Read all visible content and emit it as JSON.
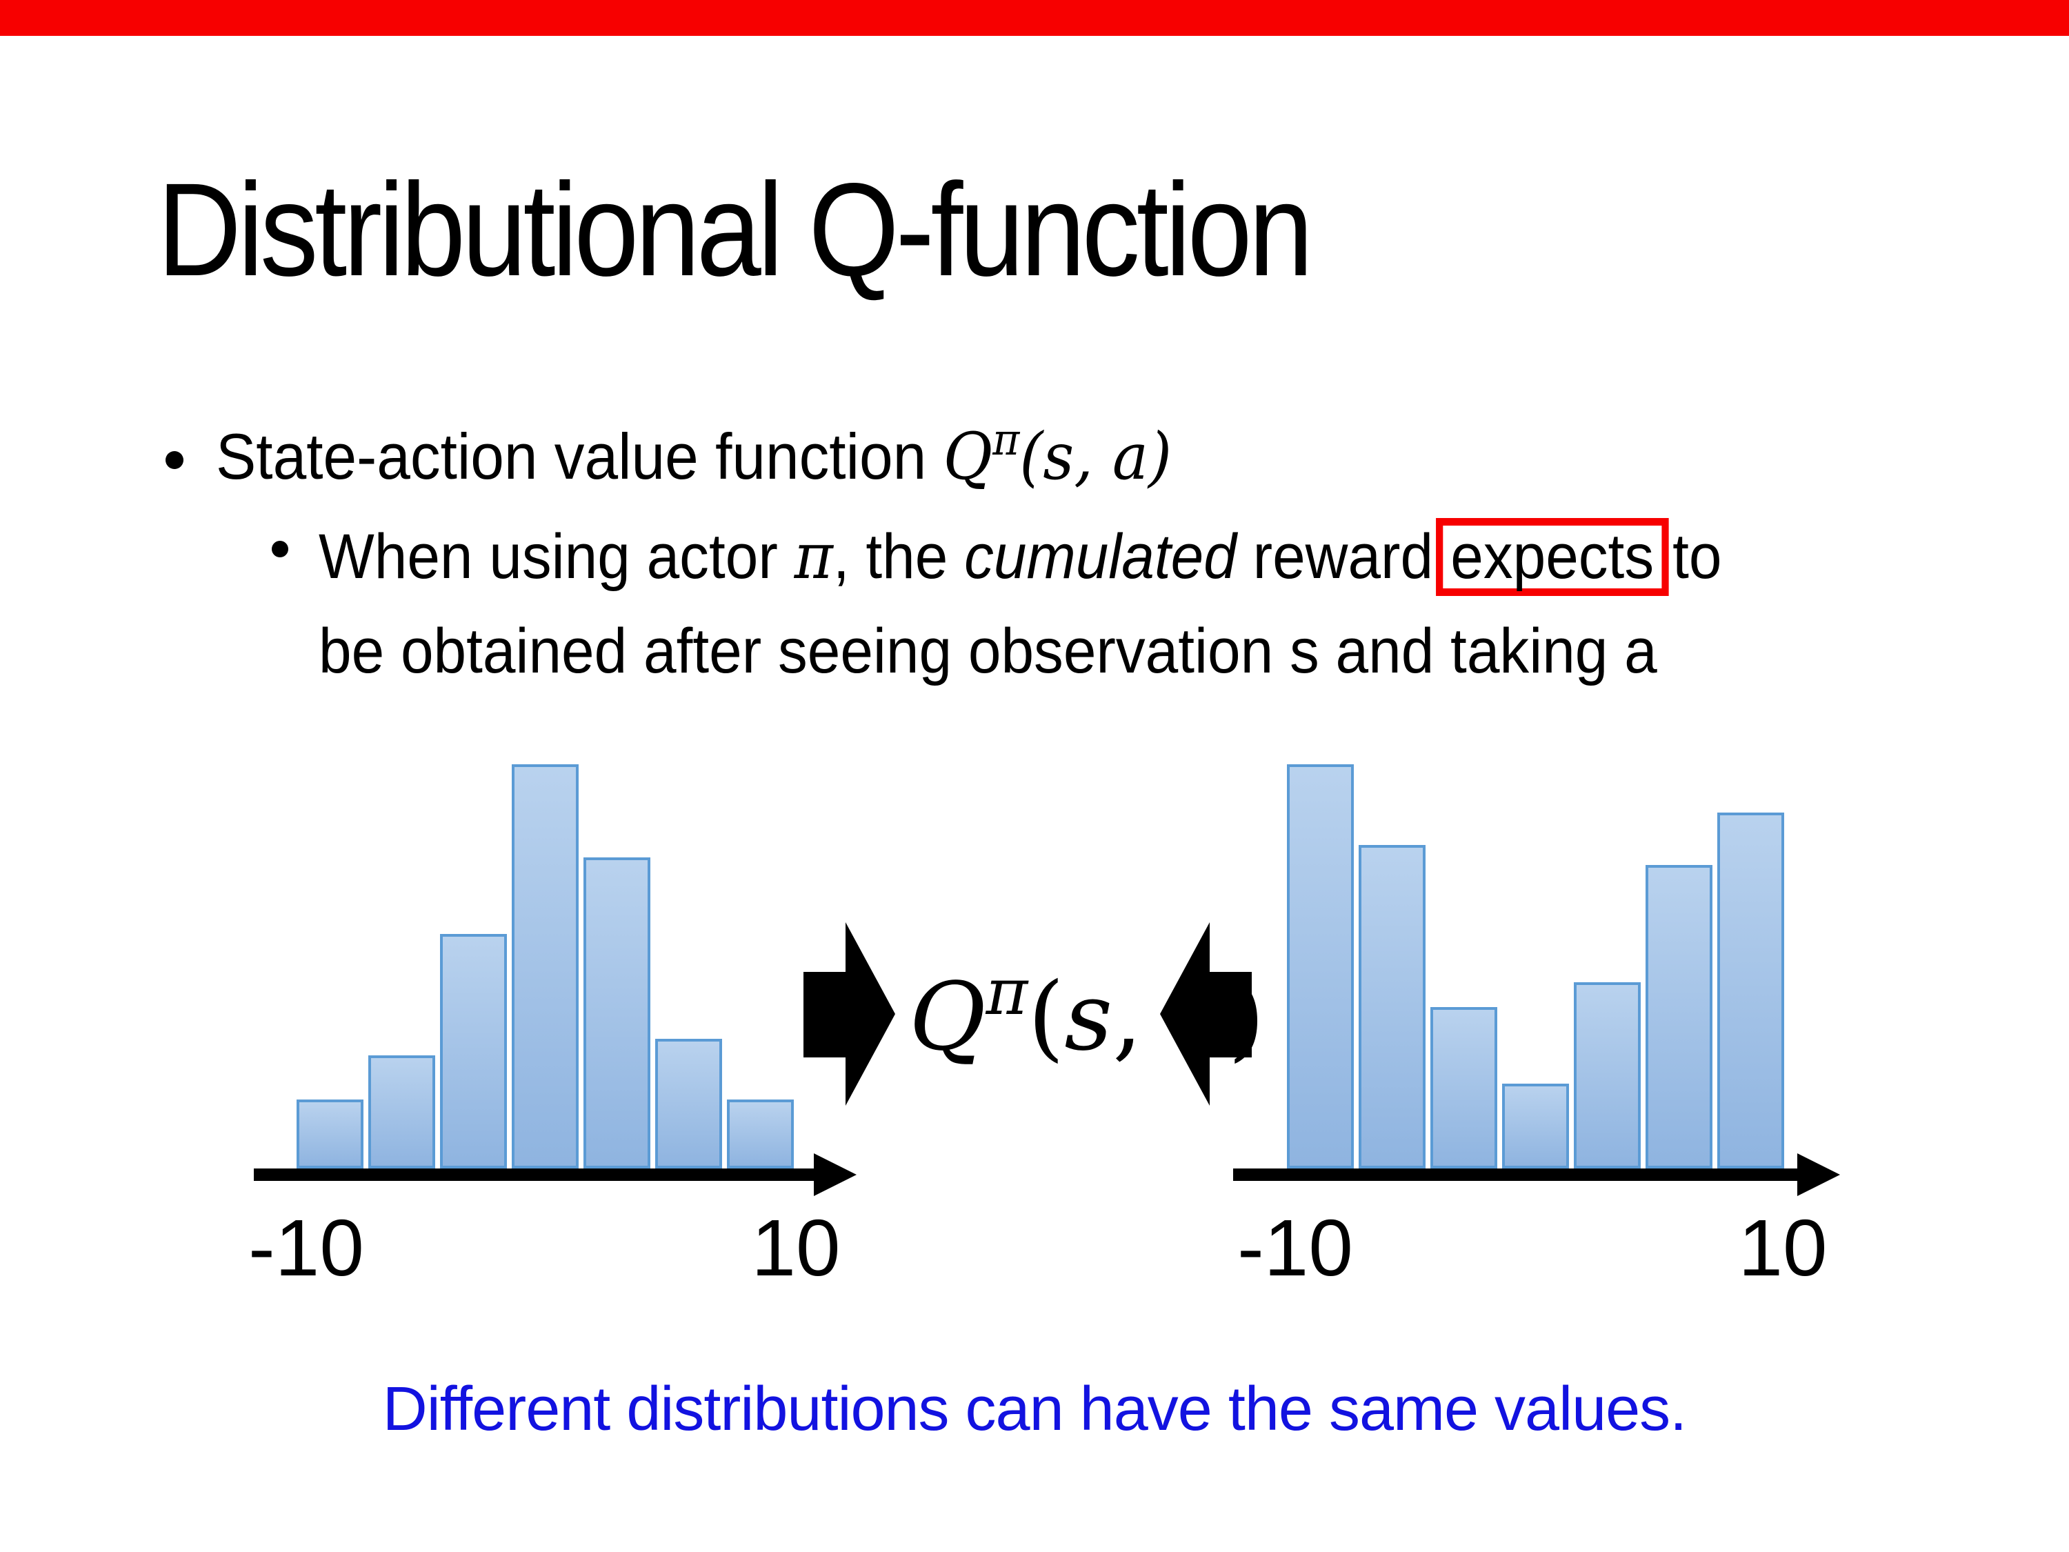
{
  "slide": {
    "title": "Distributional Q-function",
    "colors": {
      "accent_red": "#f70000",
      "caption_blue": "#1212e0",
      "bar_fill_top": "#b9d2ee",
      "bar_fill_bottom": "#8fb4e0",
      "bar_border": "#5b9bd5",
      "axis_black": "#000000"
    },
    "bullet1": {
      "prefix": "State-action value function ",
      "math": {
        "q": "Q",
        "pi": "π",
        "open": "(",
        "s": "s",
        "comma": ", ",
        "a": "a",
        "close": ")"
      }
    },
    "sub_bullet": {
      "part1": "When using actor ",
      "pi": "π",
      "part2": ", the ",
      "italic_word": "cumulated",
      "part3": " reward",
      "boxed_word": "expects",
      "part4": "to",
      "line2": "be obtained after seeing observation s and taking a"
    },
    "center_formula": {
      "q": "Q",
      "pi": "π",
      "open": "(",
      "s": "s",
      "comma": ", ",
      "a": "a",
      "close": ")"
    },
    "caption": "Different distributions can have the same values."
  },
  "chart_data": [
    {
      "type": "bar",
      "bar_count": 7,
      "values": [
        0.17,
        0.28,
        0.58,
        1.0,
        0.77,
        0.32,
        0.17
      ],
      "x_axis": {
        "min_label": "-10",
        "max_label": "10",
        "range": [
          -10,
          10
        ],
        "arrow": true
      },
      "ylim": [
        0,
        1
      ],
      "grid": false,
      "shape": "unimodal distribution of cumulated reward"
    },
    {
      "type": "bar",
      "bar_count": 7,
      "values": [
        1.0,
        0.8,
        0.4,
        0.21,
        0.46,
        0.75,
        0.88
      ],
      "x_axis": {
        "min_label": "-10",
        "max_label": "10",
        "range": [
          -10,
          10
        ],
        "arrow": true
      },
      "ylim": [
        0,
        1
      ],
      "grid": false,
      "shape": "bimodal distribution of cumulated reward"
    }
  ]
}
